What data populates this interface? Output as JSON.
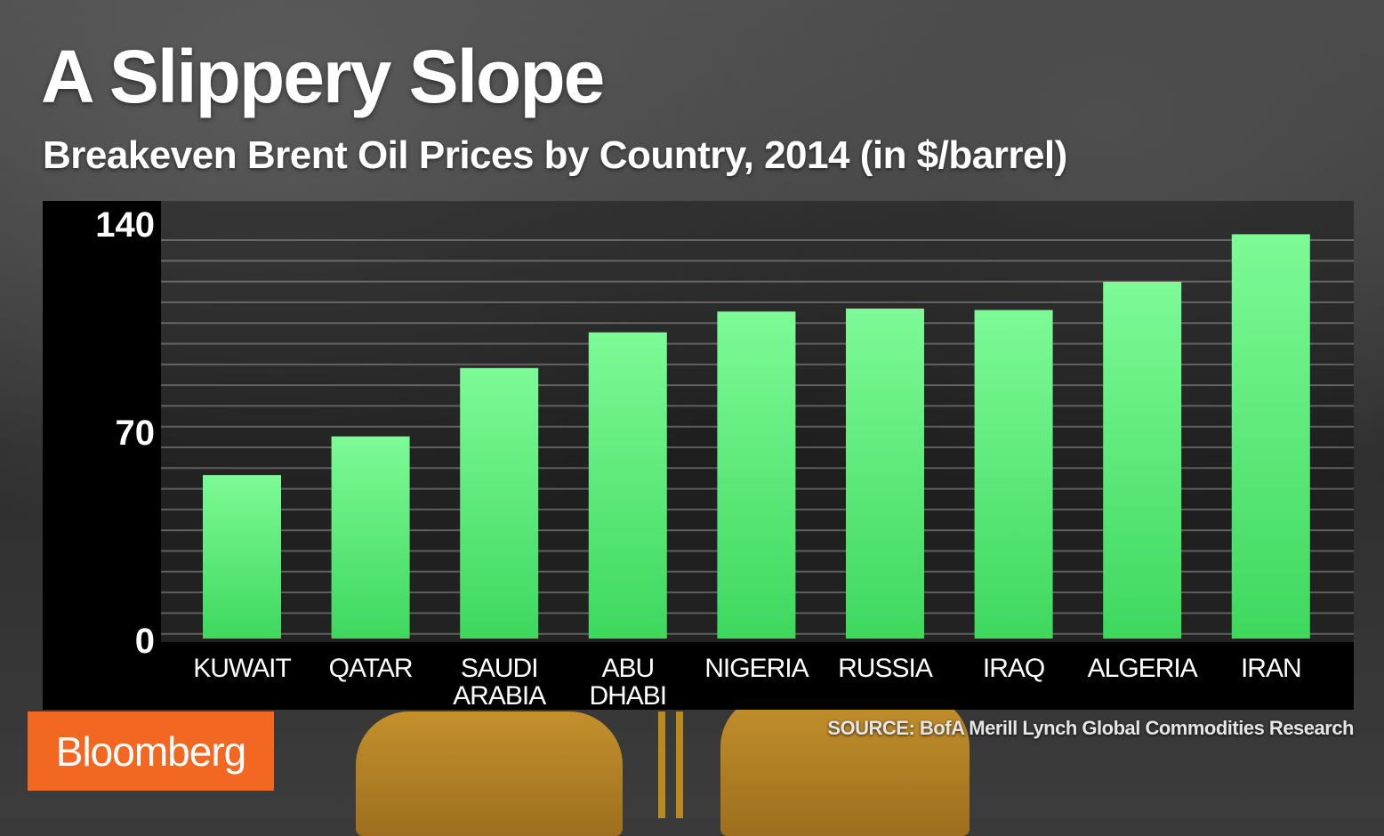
{
  "title": "A Slippery Slope",
  "subtitle": "Breakeven Brent Oil Prices by Country, 2014 (in $/barrel)",
  "source": "SOURCE: BofA Merill Lynch Global Commodities Research",
  "logo": "Bloomberg",
  "colors": {
    "bar": "#6ef58a",
    "bar_dark": "#3ed85e",
    "logo_bg": "#f26722",
    "panel": "#000000"
  },
  "chart_data": {
    "type": "bar",
    "title": "A Slippery Slope",
    "subtitle": "Breakeven Brent Oil Prices by Country, 2014 (in $/barrel)",
    "categories": [
      [
        "KUWAIT"
      ],
      [
        "QATAR"
      ],
      [
        "SAUDI",
        "ARABIA"
      ],
      [
        "ABU",
        "DHABI"
      ],
      [
        "NIGERIA"
      ],
      [
        "RUSSIA"
      ],
      [
        "IRAQ"
      ],
      [
        "ALGERIA"
      ],
      [
        "IRAN"
      ]
    ],
    "values": [
      55,
      68,
      91,
      103,
      110,
      111,
      110.5,
      120,
      136
    ],
    "ylim": [
      0,
      140
    ],
    "yticks": [
      0,
      70,
      140
    ],
    "grid": true,
    "xlabel": "",
    "ylabel": ""
  }
}
